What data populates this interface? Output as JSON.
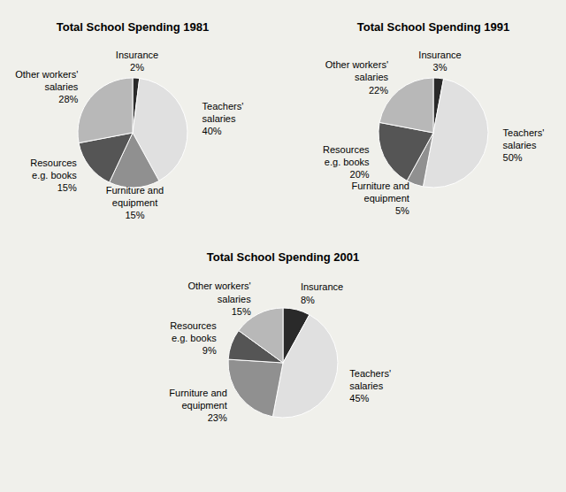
{
  "chart_data": [
    {
      "type": "pie",
      "title": "Total School Spending 1981",
      "categories": [
        "Insurance",
        "Teachers'\nsalaries",
        "Furniture and\nequipment",
        "Resources\ne.g. books",
        "Other workers'\nsalaries"
      ],
      "values": [
        2,
        40,
        15,
        15,
        28
      ],
      "value_labels": [
        "2%",
        "40%",
        "15%",
        "15%",
        "28%"
      ],
      "colors": [
        "#2a2a2a",
        "#e0e0e0",
        "#909090",
        "#555555",
        "#b8b8b8"
      ],
      "data_labels": true
    },
    {
      "type": "pie",
      "title": "Total School Spending 1991",
      "categories": [
        "Insurance",
        "Teachers'\nsalaries",
        "Furniture and\nequipment",
        "Resources\ne.g. books",
        "Other workers'\nsalaries"
      ],
      "values": [
        3,
        50,
        5,
        20,
        22
      ],
      "value_labels": [
        "3%",
        "50%",
        "5%",
        "20%",
        "22%"
      ],
      "colors": [
        "#2a2a2a",
        "#e0e0e0",
        "#909090",
        "#555555",
        "#b8b8b8"
      ],
      "data_labels": true
    },
    {
      "type": "pie",
      "title": "Total School Spending 2001",
      "categories": [
        "Insurance",
        "Teachers'\nsalaries",
        "Furniture and\nequipment",
        "Resources\ne.g. books",
        "Other workers'\nsalaries"
      ],
      "values": [
        8,
        45,
        23,
        9,
        15
      ],
      "value_labels": [
        "8%",
        "45%",
        "23%",
        "9%",
        "15%"
      ],
      "colors": [
        "#2a2a2a",
        "#e0e0e0",
        "#909090",
        "#555555",
        "#b8b8b8"
      ],
      "data_labels": true
    }
  ]
}
